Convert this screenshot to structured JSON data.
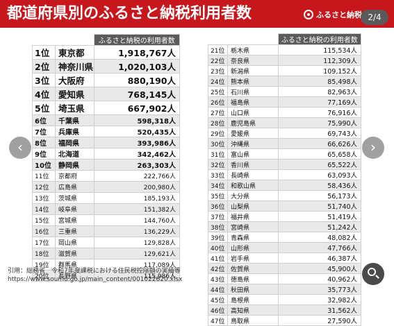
{
  "header": {
    "title": "都道府県別のふるさと納税利用者数",
    "brand": "ふるさと納税ガイド",
    "counter": "2/4"
  },
  "left_table": {
    "header": "ふるさと納税の利用者数",
    "rows": [
      {
        "rank": "1位",
        "pref": "東京都",
        "value": "1,918,767人"
      },
      {
        "rank": "2位",
        "pref": "神奈川県",
        "value": "1,020,103人"
      },
      {
        "rank": "3位",
        "pref": "大阪府",
        "value": "880,190人"
      },
      {
        "rank": "4位",
        "pref": "愛知県",
        "value": "768,145人"
      },
      {
        "rank": "5位",
        "pref": "埼玉県",
        "value": "667,902人"
      },
      {
        "rank": "6位",
        "pref": "千葉県",
        "value": "598,318人"
      },
      {
        "rank": "7位",
        "pref": "兵庫県",
        "value": "520,435人"
      },
      {
        "rank": "8位",
        "pref": "福岡県",
        "value": "393,986人"
      },
      {
        "rank": "9位",
        "pref": "北海道",
        "value": "342,462人"
      },
      {
        "rank": "10位",
        "pref": "静岡県",
        "value": "263,303人"
      },
      {
        "rank": "11位",
        "pref": "京都府",
        "value": "222,766人"
      },
      {
        "rank": "12位",
        "pref": "広島県",
        "value": "200,980人"
      },
      {
        "rank": "13位",
        "pref": "茨城県",
        "value": "185,193人"
      },
      {
        "rank": "14位",
        "pref": "岐阜県",
        "value": "151,382人"
      },
      {
        "rank": "15位",
        "pref": "宮城県",
        "value": "144,760人"
      },
      {
        "rank": "16位",
        "pref": "三重県",
        "value": "136,229人"
      },
      {
        "rank": "17位",
        "pref": "岡山県",
        "value": "129,828人"
      },
      {
        "rank": "18位",
        "pref": "滋賀県",
        "value": "129,621人"
      },
      {
        "rank": "19位",
        "pref": "群馬県",
        "value": "117,089人"
      },
      {
        "rank": "20位",
        "pref": "長野県",
        "value": "115,986人"
      }
    ]
  },
  "right_table": {
    "header": "ふるさと納税の利用者数",
    "rows": [
      {
        "rank": "21位",
        "pref": "栃木県",
        "value": "115,534人"
      },
      {
        "rank": "22位",
        "pref": "奈良県",
        "value": "112,309人"
      },
      {
        "rank": "23位",
        "pref": "新潟県",
        "value": "109,152人"
      },
      {
        "rank": "24位",
        "pref": "熊本県",
        "value": "85,498人"
      },
      {
        "rank": "25位",
        "pref": "石川県",
        "value": "82,963人"
      },
      {
        "rank": "26位",
        "pref": "福島県",
        "value": "77,169人"
      },
      {
        "rank": "27位",
        "pref": "山口県",
        "value": "76,916人"
      },
      {
        "rank": "28位",
        "pref": "鹿児島県",
        "value": "75,990人"
      },
      {
        "rank": "29位",
        "pref": "愛媛県",
        "value": "69,743人"
      },
      {
        "rank": "30位",
        "pref": "沖縄県",
        "value": "66,626人"
      },
      {
        "rank": "31位",
        "pref": "富山県",
        "value": "65,658人"
      },
      {
        "rank": "32位",
        "pref": "香川県",
        "value": "65,522人"
      },
      {
        "rank": "33位",
        "pref": "長崎県",
        "value": "63,093人"
      },
      {
        "rank": "34位",
        "pref": "和歌山県",
        "value": "58,436人"
      },
      {
        "rank": "35位",
        "pref": "大分県",
        "value": "56,173人"
      },
      {
        "rank": "36位",
        "pref": "山梨県",
        "value": "51,740人"
      },
      {
        "rank": "37位",
        "pref": "福井県",
        "value": "51,419人"
      },
      {
        "rank": "38位",
        "pref": "宮崎県",
        "value": "51,242人"
      },
      {
        "rank": "39位",
        "pref": "青森県",
        "value": "48,082人"
      },
      {
        "rank": "40位",
        "pref": "山形県",
        "value": "47,766人"
      },
      {
        "rank": "41位",
        "pref": "岩手県",
        "value": "46,387人"
      },
      {
        "rank": "42位",
        "pref": "佐賀県",
        "value": "45,900人"
      },
      {
        "rank": "43位",
        "pref": "徳島県",
        "value": "40,962人"
      },
      {
        "rank": "44位",
        "pref": "秋田県",
        "value": "35,773人"
      },
      {
        "rank": "45位",
        "pref": "島根県",
        "value": "32,982人"
      },
      {
        "rank": "46位",
        "pref": "高知県",
        "value": "31,562人"
      },
      {
        "rank": "47位",
        "pref": "鳥取県",
        "value": "27,590人"
      }
    ]
  },
  "citation": {
    "line1": "引用：総務省　令和7年度課税における住民税控除額の実績等",
    "line2": "https://www.soumu.go.jp/main_content/001022820.xlsx"
  },
  "icons": {
    "prev": "chevron-left-icon",
    "next": "chevron-right-icon",
    "zoom": "magnifier-icon",
    "brand": "brand-logo-icon"
  },
  "colors": {
    "header_bg": "#c8161d",
    "table_header_bg": "#5b5b5b",
    "row_alt_bg": "#e9e9e9"
  }
}
